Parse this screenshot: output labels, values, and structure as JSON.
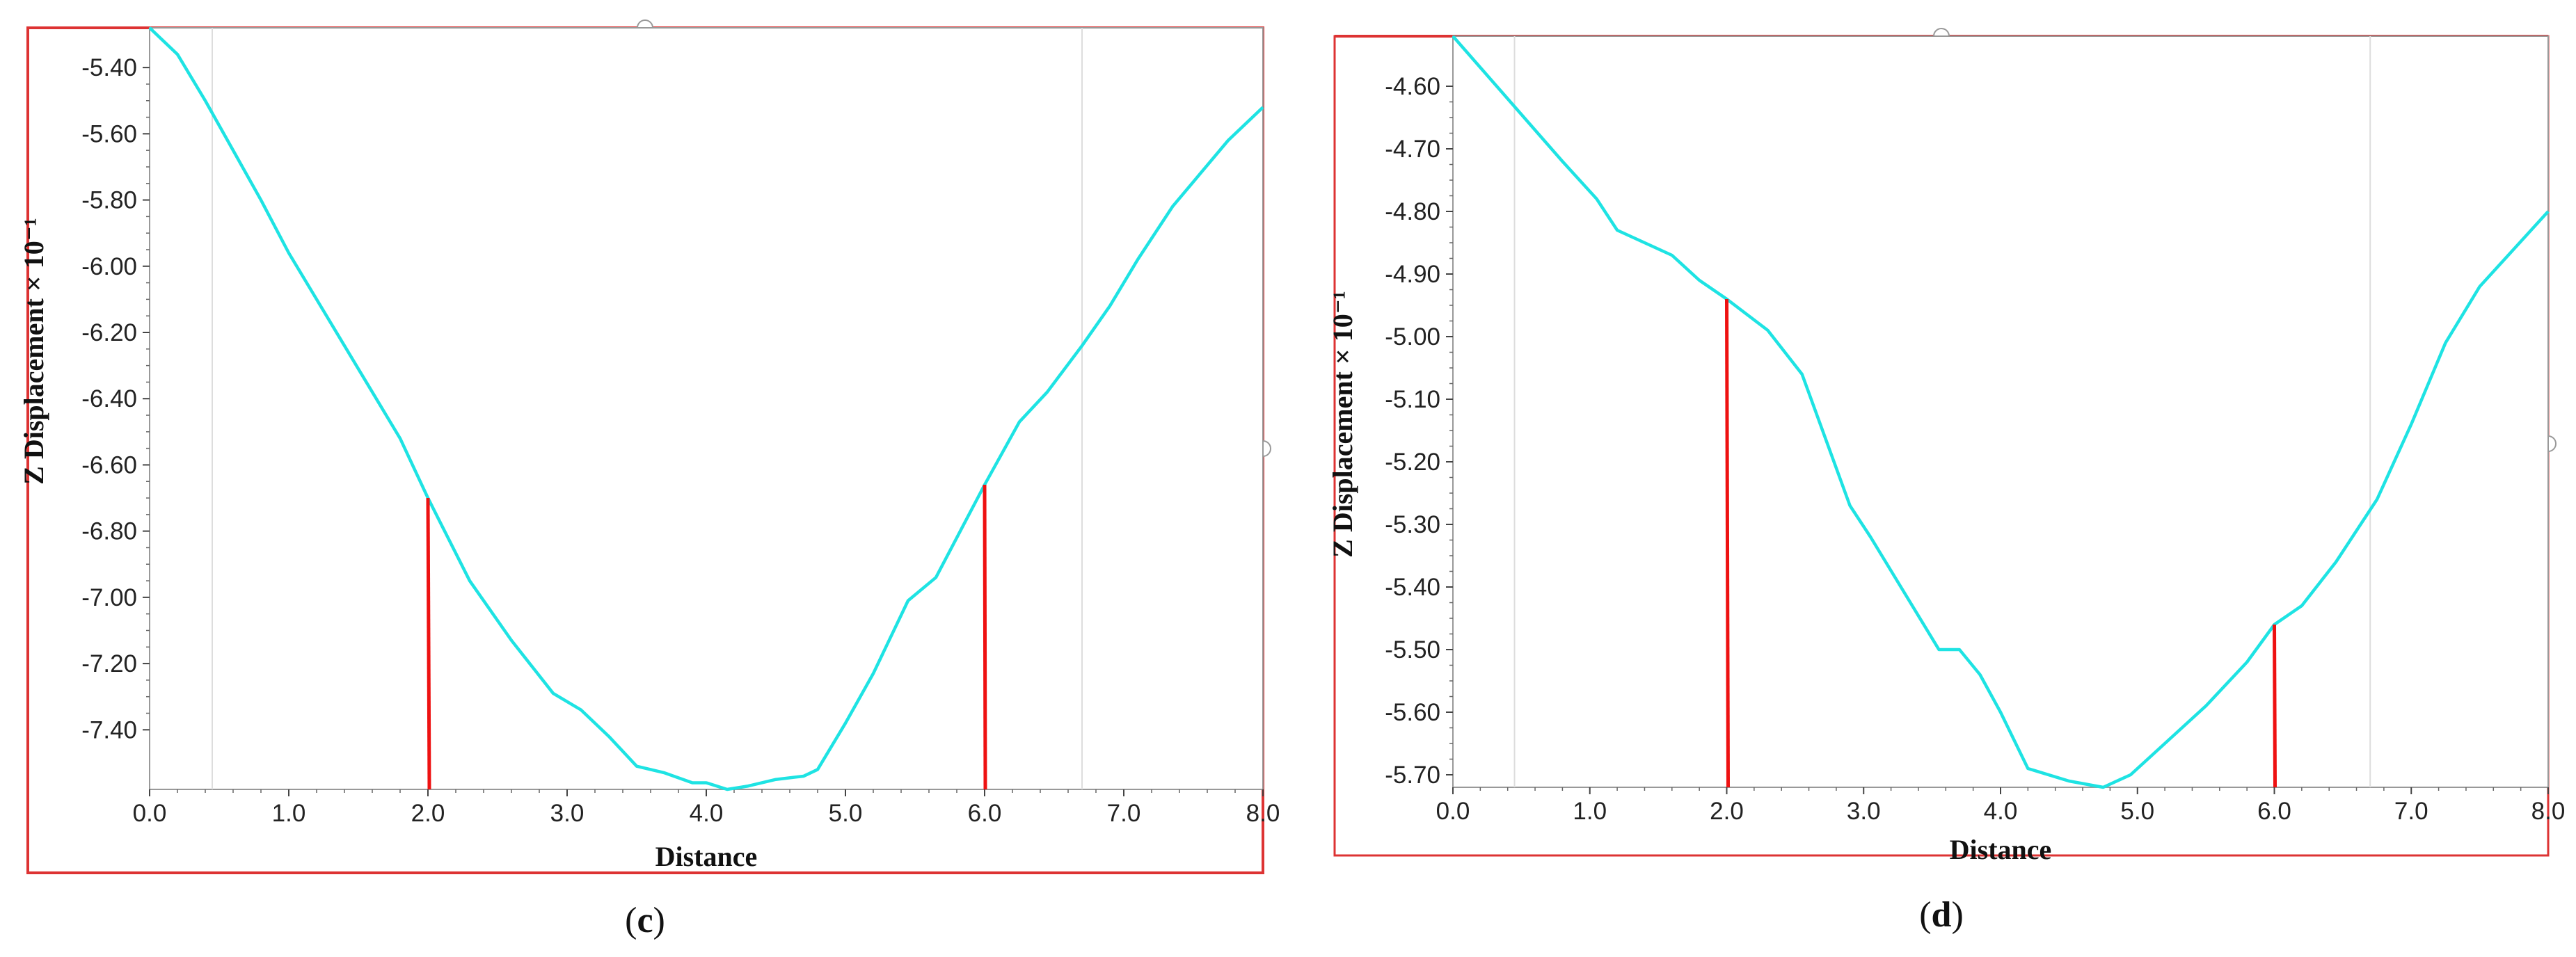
{
  "chart_data": [
    {
      "type": "line",
      "caption": "c",
      "xlabel": "Distance",
      "ylabel": "Z Displacement × 10⁻¹",
      "xlim": [
        0,
        8
      ],
      "ylim": [
        -7.58,
        -5.28
      ],
      "x_ticks": [
        "0.0",
        "1.0",
        "2.0",
        "3.0",
        "4.0",
        "5.0",
        "6.0",
        "7.0",
        "8.0"
      ],
      "y_ticks": [
        "-5.40",
        "-5.60",
        "-5.80",
        "-6.00",
        "-6.20",
        "-6.40",
        "-6.60",
        "-6.80",
        "-7.00",
        "-7.20",
        "-7.40"
      ],
      "series_color": "#1EE3E3",
      "marker_color": "#EE1111",
      "grid_x": [
        0.45,
        6.7
      ],
      "series": [
        {
          "x": [
            0.0,
            0.2,
            0.4,
            0.6,
            0.8,
            1.0,
            1.2,
            1.4,
            1.6,
            1.8,
            2.0,
            2.3,
            2.6,
            2.9,
            3.1,
            3.3,
            3.5,
            3.7,
            3.9,
            4.0,
            4.15,
            4.3,
            4.5,
            4.7,
            4.8,
            5.0,
            5.2,
            5.45,
            5.65,
            5.9,
            6.0,
            6.25,
            6.45,
            6.7,
            6.9,
            7.1,
            7.35,
            7.55,
            7.75,
            8.0
          ],
          "y": [
            -5.28,
            -5.36,
            -5.5,
            -5.65,
            -5.8,
            -5.96,
            -6.1,
            -6.24,
            -6.38,
            -6.52,
            -6.7,
            -6.95,
            -7.13,
            -7.29,
            -7.34,
            -7.42,
            -7.51,
            -7.53,
            -7.56,
            -7.56,
            -7.58,
            -7.57,
            -7.55,
            -7.54,
            -7.52,
            -7.38,
            -7.23,
            -7.01,
            -6.94,
            -6.74,
            -6.66,
            -6.47,
            -6.38,
            -6.24,
            -6.12,
            -5.98,
            -5.82,
            -5.72,
            -5.62,
            -5.52
          ]
        }
      ],
      "markers": [
        {
          "x": 2.0,
          "y": -6.7
        },
        {
          "x": 6.0,
          "y": -6.66
        }
      ]
    },
    {
      "type": "line",
      "caption": "d",
      "xlabel": "Distance",
      "ylabel": "Z Displacement × 10⁻¹",
      "xlim": [
        0,
        8
      ],
      "ylim": [
        -5.72,
        -4.52
      ],
      "x_ticks": [
        "0.0",
        "1.0",
        "2.0",
        "3.0",
        "4.0",
        "5.0",
        "6.0",
        "7.0",
        "8.0"
      ],
      "y_ticks": [
        "-4.60",
        "-4.70",
        "-4.80",
        "-4.90",
        "-5.00",
        "-5.10",
        "-5.20",
        "-5.30",
        "-5.40",
        "-5.50",
        "-5.60",
        "-5.70"
      ],
      "series_color": "#1EE3E3",
      "marker_color": "#EE1111",
      "grid_x": [
        0.45,
        6.7
      ],
      "series": [
        {
          "x": [
            0.0,
            0.2,
            0.4,
            0.6,
            0.8,
            1.05,
            1.2,
            1.4,
            1.6,
            1.8,
            2.0,
            2.3,
            2.55,
            2.75,
            2.9,
            3.05,
            3.3,
            3.55,
            3.7,
            3.85,
            4.0,
            4.2,
            4.5,
            4.75,
            4.95,
            5.2,
            5.5,
            5.8,
            6.0,
            6.2,
            6.45,
            6.75,
            7.0,
            7.25,
            7.5,
            7.75,
            8.0
          ],
          "y": [
            -4.52,
            -4.57,
            -4.62,
            -4.67,
            -4.72,
            -4.78,
            -4.83,
            -4.85,
            -4.87,
            -4.91,
            -4.94,
            -4.99,
            -5.06,
            -5.18,
            -5.27,
            -5.32,
            -5.41,
            -5.5,
            -5.5,
            -5.54,
            -5.6,
            -5.69,
            -5.71,
            -5.72,
            -5.7,
            -5.65,
            -5.59,
            -5.52,
            -5.46,
            -5.43,
            -5.36,
            -5.26,
            -5.14,
            -5.01,
            -4.92,
            -4.86,
            -4.8
          ]
        }
      ],
      "markers": [
        {
          "x": 2.0,
          "y": -4.94
        },
        {
          "x": 6.0,
          "y": -5.46
        }
      ]
    }
  ]
}
